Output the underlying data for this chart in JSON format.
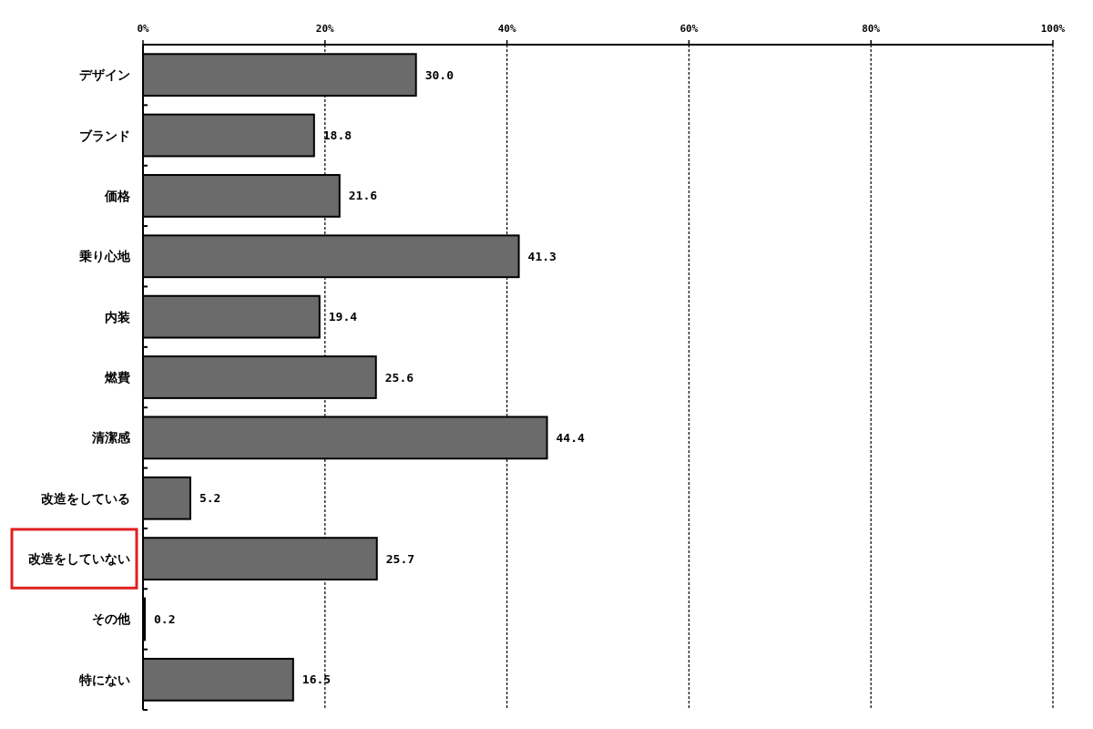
{
  "chart_data": {
    "type": "bar",
    "orientation": "horizontal",
    "categories": [
      "デザイン",
      "ブランド",
      "価格",
      "乗り心地",
      "内装",
      "燃費",
      "清潔感",
      "改造をしている",
      "改造をしていない",
      "その他",
      "特にない"
    ],
    "values": [
      30.0,
      18.8,
      21.6,
      41.3,
      19.4,
      25.6,
      44.4,
      5.2,
      25.7,
      0.2,
      16.5
    ],
    "value_labels": [
      "30.0",
      "18.8",
      "21.6",
      "41.3",
      "19.4",
      "25.6",
      "44.4",
      "5.2",
      "25.7",
      "0.2",
      "16.5"
    ],
    "color": "#6b6b6b",
    "xlim": [
      0,
      100
    ],
    "xticks": [
      {
        "value": 0,
        "label": "0%"
      },
      {
        "value": 20,
        "label": "20%"
      },
      {
        "value": 40,
        "label": "40%"
      },
      {
        "value": 60,
        "label": "60%"
      },
      {
        "value": 80,
        "label": "80%"
      },
      {
        "value": 100,
        "label": "100%"
      }
    ],
    "grid": "x"
  }
}
